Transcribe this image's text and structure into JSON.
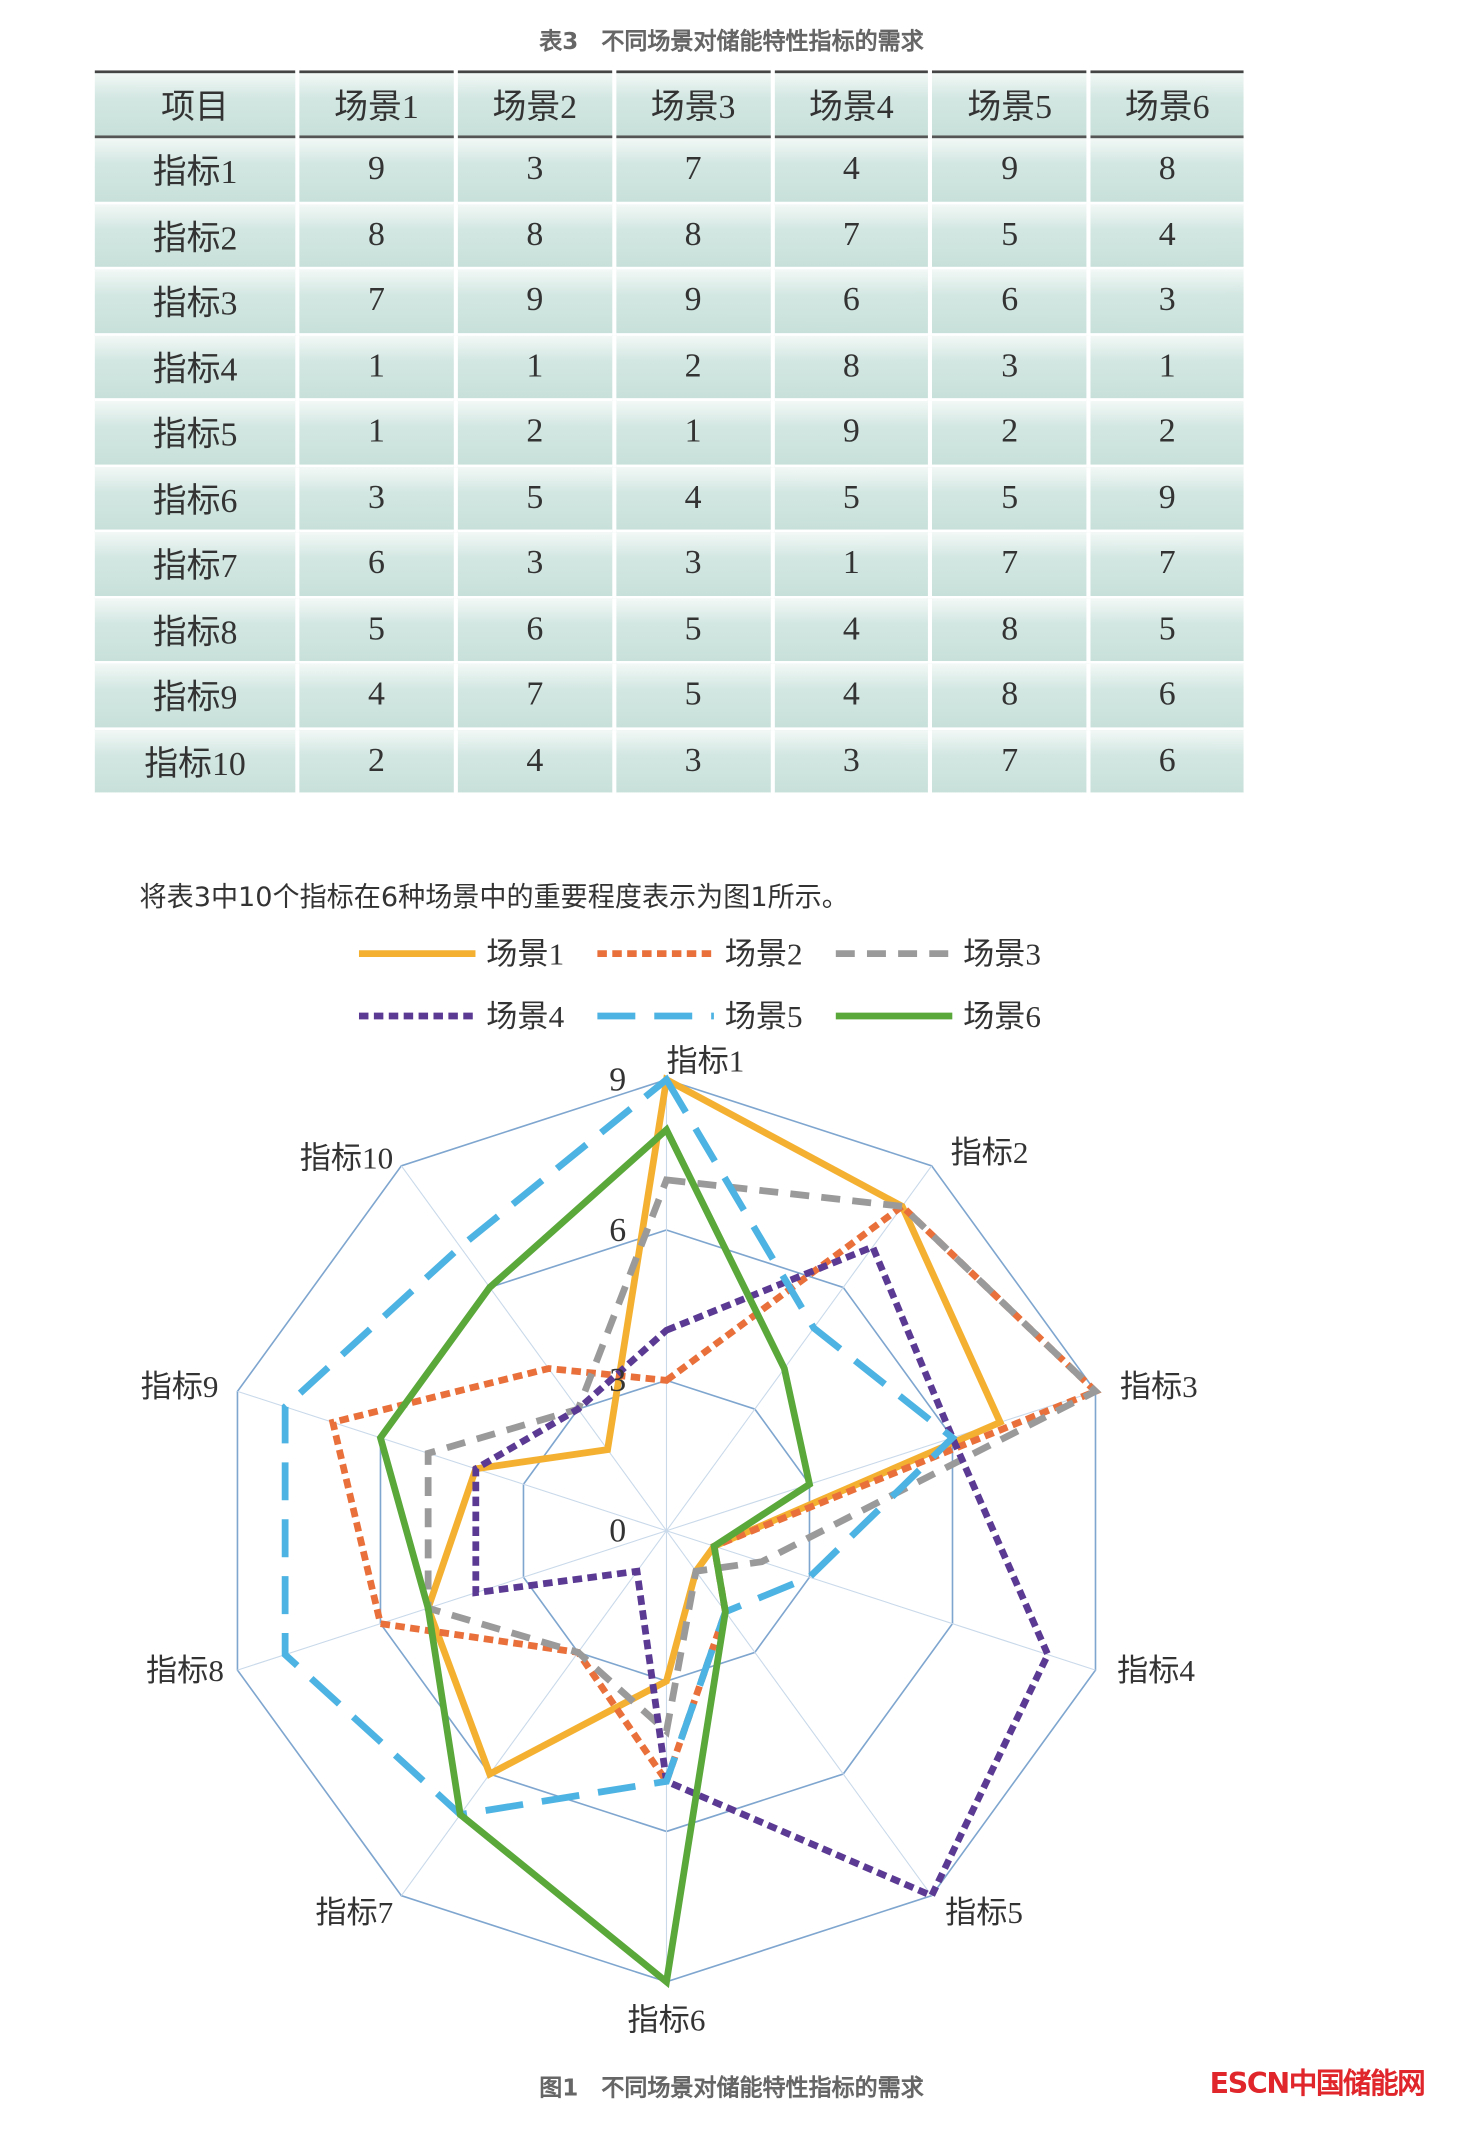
{
  "table_caption": "表3　不同场景对储能特性指标的需求",
  "sentence": "将表3中10个指标在6种场景中的重要程度表示为图1所示。",
  "figure_caption": "图1　不同场景对储能特性指标的需求",
  "logo_text": "ESCN中国储能网",
  "chart_data": {
    "type": "radar",
    "table": {
      "headers": [
        "项目",
        "场景1",
        "场景2",
        "场景3",
        "场景4",
        "场景5",
        "场景6"
      ],
      "rows": [
        [
          "指标1",
          "9",
          "3",
          "7",
          "4",
          "9",
          "8"
        ],
        [
          "指标2",
          "8",
          "8",
          "8",
          "7",
          "5",
          "4"
        ],
        [
          "指标3",
          "7",
          "9",
          "9",
          "6",
          "6",
          "3"
        ],
        [
          "指标4",
          "1",
          "1",
          "2",
          "8",
          "3",
          "1"
        ],
        [
          "指标5",
          "1",
          "2",
          "1",
          "9",
          "2",
          "2"
        ],
        [
          "指标6",
          "3",
          "5",
          "4",
          "5",
          "5",
          "9"
        ],
        [
          "指标7",
          "6",
          "3",
          "3",
          "1",
          "7",
          "7"
        ],
        [
          "指标8",
          "5",
          "6",
          "5",
          "4",
          "8",
          "5"
        ],
        [
          "指标9",
          "4",
          "7",
          "5",
          "4",
          "8",
          "6"
        ],
        [
          "指标10",
          "2",
          "4",
          "3",
          "3",
          "7",
          "6"
        ]
      ]
    },
    "categories": [
      "指标1",
      "指标2",
      "指标3",
      "指标4",
      "指标5",
      "指标6",
      "指标7",
      "指标8",
      "指标9",
      "指标10"
    ],
    "radial_ticks": [
      "0",
      "3",
      "6",
      "9"
    ],
    "rmax": 9,
    "legend_position": "top",
    "series": [
      {
        "name": "场景1",
        "values": [
          9,
          8,
          7,
          1,
          1,
          3,
          6,
          5,
          4,
          2
        ],
        "color": "#f4b131",
        "style": "solid"
      },
      {
        "name": "场景2",
        "values": [
          3,
          8,
          9,
          1,
          2,
          5,
          3,
          6,
          7,
          4
        ],
        "color": "#e9703a",
        "style": "dotted"
      },
      {
        "name": "场景3",
        "values": [
          7,
          8,
          9,
          2,
          1,
          4,
          3,
          5,
          5,
          3
        ],
        "color": "#9a9a9a",
        "style": "dashed"
      },
      {
        "name": "场景4",
        "values": [
          4,
          7,
          6,
          8,
          9,
          5,
          1,
          4,
          4,
          3
        ],
        "color": "#5b3a94",
        "style": "dotted"
      },
      {
        "name": "场景5",
        "values": [
          9,
          5,
          6,
          3,
          2,
          5,
          7,
          8,
          8,
          7
        ],
        "color": "#4db3e2",
        "style": "longdash"
      },
      {
        "name": "场景6",
        "values": [
          8,
          4,
          3,
          1,
          2,
          9,
          7,
          5,
          6,
          6
        ],
        "color": "#5aa83a",
        "style": "solid"
      }
    ],
    "grid_color": "#7fa6cf"
  }
}
